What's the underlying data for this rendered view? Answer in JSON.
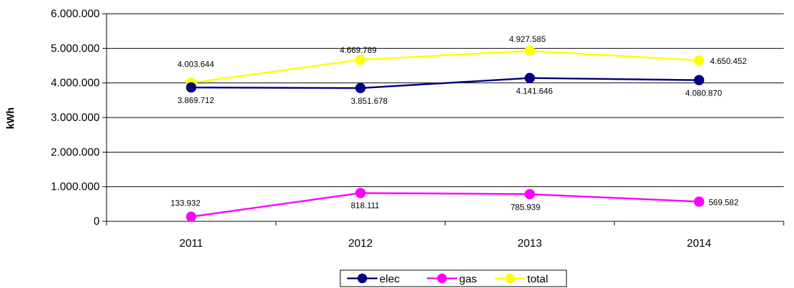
{
  "chart_data": {
    "type": "line",
    "title": "",
    "xlabel": "",
    "ylabel": "kWh",
    "categories": [
      "2011",
      "2012",
      "2013",
      "2014"
    ],
    "ylim": [
      0,
      6000000
    ],
    "yticks": [
      0,
      1000000,
      2000000,
      3000000,
      4000000,
      5000000,
      6000000
    ],
    "ytick_labels": [
      "0",
      "1.000.000",
      "2.000.000",
      "3.000.000",
      "4.000.000",
      "5.000.000",
      "6.000.000"
    ],
    "grid": true,
    "legend_position": "bottom",
    "series": [
      {
        "name": "elec",
        "color": "#000080",
        "values": [
          3869712,
          3851678,
          4141646,
          4080870
        ],
        "labels": [
          "3.869.712",
          "3.851.678",
          "4.141.646",
          "4.080.870"
        ]
      },
      {
        "name": "gas",
        "color": "#ff00ff",
        "values": [
          133932,
          818111,
          785939,
          569582
        ],
        "labels": [
          "133.932",
          "818.111",
          "785.939",
          "569.582"
        ]
      },
      {
        "name": "total",
        "color": "#ffff00",
        "values": [
          4003644,
          4669789,
          4927585,
          4650452
        ],
        "labels": [
          "4.003.644",
          "4.669.789",
          "4.927.585",
          "4.650.452"
        ]
      }
    ]
  }
}
